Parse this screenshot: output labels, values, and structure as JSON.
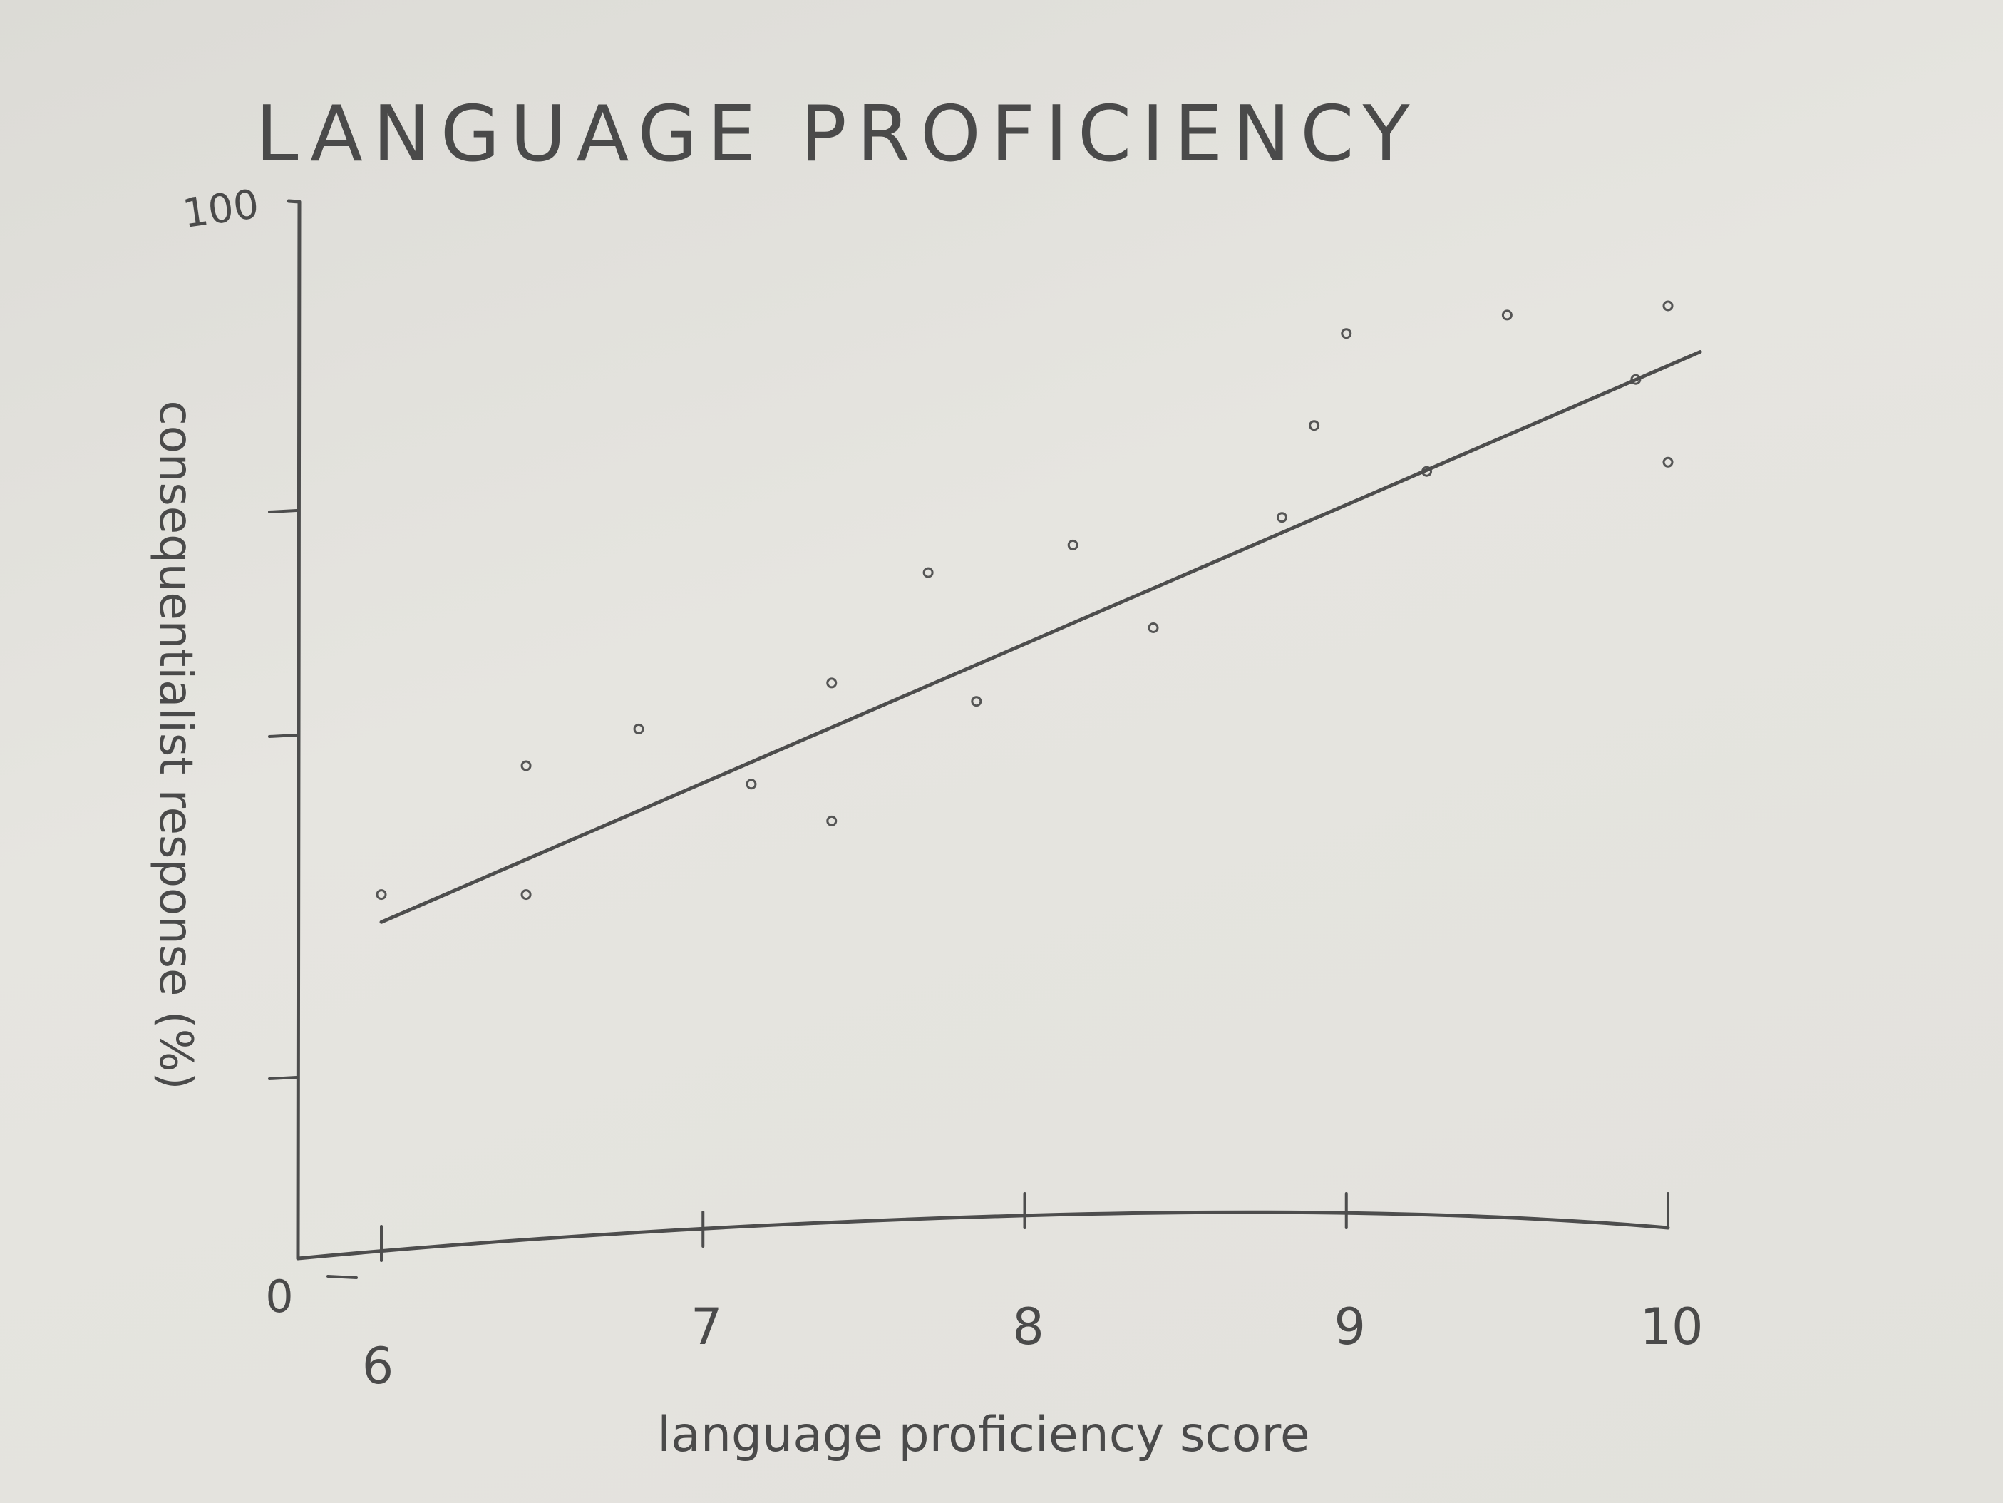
{
  "chart_data": {
    "type": "scatter",
    "title": "LANGUAGE PROFICIENCY",
    "xlabel": "language proficiency score",
    "ylabel": "consequentialist response (%)",
    "xlim": [
      6,
      10
    ],
    "ylim": [
      0,
      100
    ],
    "x_ticks": [
      "6",
      "7",
      "8",
      "9",
      "10"
    ],
    "y_ticks": [
      "0",
      "100"
    ],
    "x_origin_label": "0",
    "grid": false,
    "points": [
      {
        "x": 6.0,
        "y": 26
      },
      {
        "x": 6.45,
        "y": 40
      },
      {
        "x": 6.45,
        "y": 26
      },
      {
        "x": 6.8,
        "y": 44
      },
      {
        "x": 7.15,
        "y": 38
      },
      {
        "x": 7.4,
        "y": 49
      },
      {
        "x": 7.4,
        "y": 34
      },
      {
        "x": 7.7,
        "y": 61
      },
      {
        "x": 7.85,
        "y": 47
      },
      {
        "x": 8.15,
        "y": 64
      },
      {
        "x": 8.4,
        "y": 55
      },
      {
        "x": 8.8,
        "y": 67
      },
      {
        "x": 8.9,
        "y": 77
      },
      {
        "x": 9.0,
        "y": 87
      },
      {
        "x": 9.25,
        "y": 72
      },
      {
        "x": 9.5,
        "y": 89
      },
      {
        "x": 9.9,
        "y": 82
      },
      {
        "x": 10.0,
        "y": 90
      },
      {
        "x": 10.0,
        "y": 73
      }
    ],
    "trend_line": [
      {
        "x": 6.0,
        "y": 23
      },
      {
        "x": 10.1,
        "y": 85
      }
    ]
  }
}
